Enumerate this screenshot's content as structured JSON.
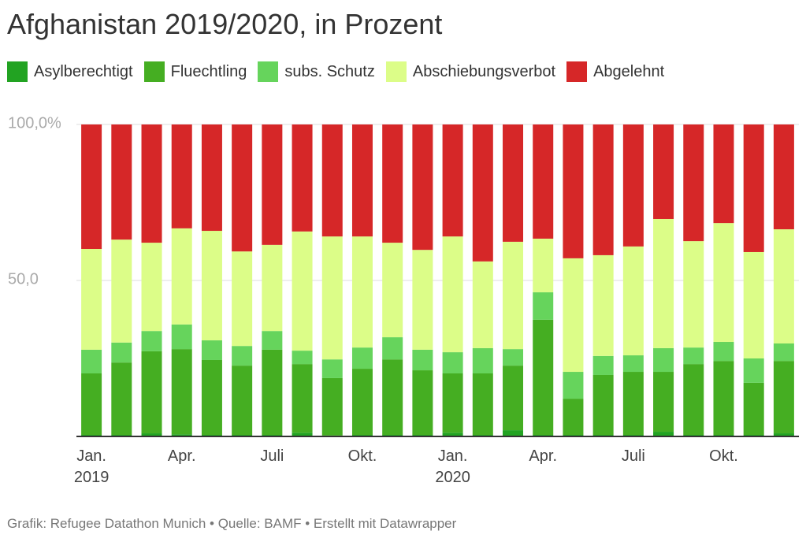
{
  "chart_data": {
    "type": "stacked_bar",
    "title": "Afghanistan 2019/2020, in Prozent",
    "footer": "Grafik: Refugee Datathon Munich • Quelle: BAMF • Erstellt mit Datawrapper",
    "categories": [
      "Jan.\n2019",
      null,
      null,
      "Apr.",
      null,
      null,
      "Juli",
      null,
      null,
      "Okt.",
      null,
      null,
      "Jan.\n2020",
      null,
      null,
      "Apr.",
      null,
      null,
      "Juli",
      null,
      null,
      "Okt.",
      null,
      null
    ],
    "ylim": [
      0,
      100
    ],
    "yticks": [
      {
        "value": 50,
        "label": "50,0"
      },
      {
        "value": 100,
        "label": "100,0%"
      }
    ],
    "grid": true,
    "series": [
      {
        "name": "Asylberechtigt",
        "color": "#22a322",
        "values": [
          0.5,
          0.5,
          1.0,
          0.7,
          0.5,
          0.5,
          0.5,
          1.2,
          0.3,
          0.5,
          0.5,
          0.5,
          1.2,
          0.5,
          2.0,
          0.5,
          0.5,
          0.5,
          0.5,
          1.5,
          0.5,
          0.5,
          0.5,
          1.0
        ]
      },
      {
        "name": "Fluechtling",
        "color": "#45ae22",
        "values": [
          19.7,
          23.2,
          26.3,
          27.3,
          24.0,
          22.2,
          27.3,
          22.0,
          18.4,
          21.2,
          24.2,
          20.7,
          19.0,
          19.7,
          20.7,
          36.9,
          11.6,
          19.2,
          20.2,
          19.2,
          22.7,
          23.7,
          16.7,
          23.2
        ]
      },
      {
        "name": "subs. Schutz",
        "color": "#66d45c",
        "values": [
          7.6,
          6.4,
          6.5,
          7.9,
          6.3,
          6.3,
          6.0,
          4.3,
          6.0,
          6.8,
          7.1,
          6.6,
          6.8,
          8.1,
          5.3,
          8.8,
          8.6,
          6.1,
          5.3,
          7.6,
          5.3,
          6.1,
          7.8,
          5.6
        ]
      },
      {
        "name": "Abschiebungsverbot",
        "color": "#dcfd88",
        "values": [
          32.3,
          33.0,
          28.3,
          30.8,
          35.1,
          30.3,
          27.6,
          38.2,
          39.4,
          35.6,
          30.3,
          32.0,
          37.1,
          27.8,
          34.4,
          17.2,
          36.4,
          32.3,
          34.9,
          41.4,
          34.1,
          38.1,
          34.1,
          36.6
        ]
      },
      {
        "name": "Abgelehnt",
        "color": "#d62728",
        "values": [
          39.9,
          36.9,
          37.9,
          33.3,
          34.1,
          40.7,
          38.6,
          34.3,
          35.9,
          35.9,
          37.9,
          40.2,
          35.9,
          43.9,
          37.6,
          36.6,
          42.9,
          41.9,
          39.1,
          30.3,
          37.4,
          31.6,
          40.9,
          33.6
        ]
      }
    ]
  }
}
